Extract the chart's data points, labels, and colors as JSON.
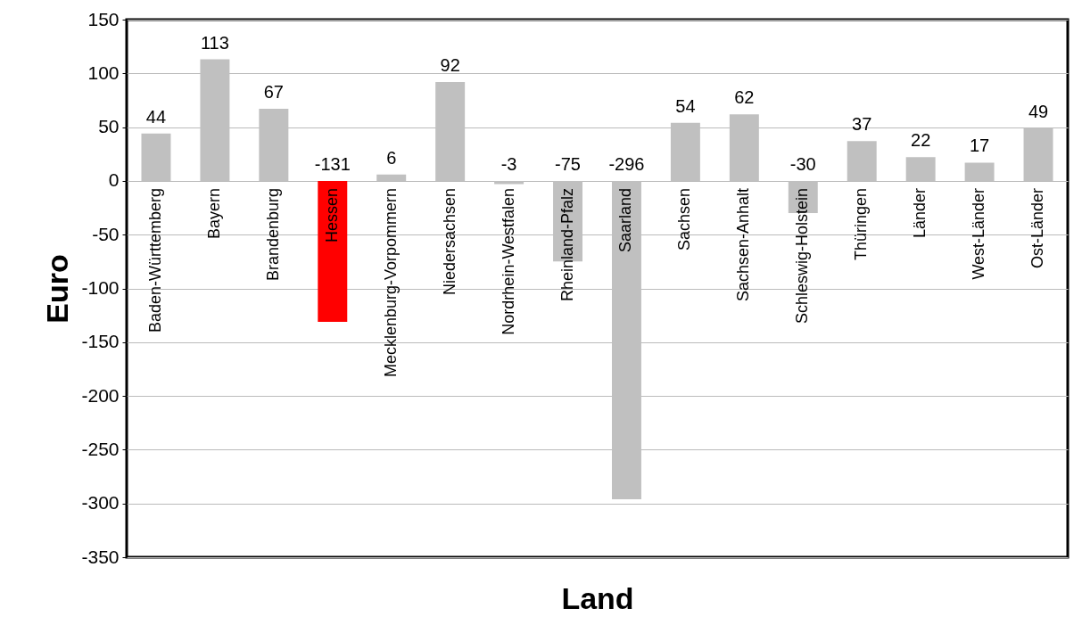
{
  "chart_data": {
    "type": "bar",
    "xlabel": "Land",
    "ylabel": "Euro",
    "categories": [
      "Baden-Württemberg",
      "Bayern",
      "Brandenburg",
      "Hessen",
      "Mecklenburg-Vorpommern",
      "Niedersachsen",
      "Nordrhein-Westfalen",
      "Rheinland-Pfalz",
      "Saarland",
      "Sachsen",
      "Sachsen-Anhalt",
      "Schleswig-Holstein",
      "Thüringen",
      "Länder",
      "West-Länder",
      "Ost-Länder"
    ],
    "values": [
      44,
      113,
      67,
      -131,
      6,
      92,
      -3,
      -75,
      -296,
      54,
      62,
      -30,
      37,
      22,
      17,
      49
    ],
    "colors": [
      "#c0c0c0",
      "#c0c0c0",
      "#c0c0c0",
      "#ff0000",
      "#c0c0c0",
      "#c0c0c0",
      "#c0c0c0",
      "#c0c0c0",
      "#c0c0c0",
      "#c0c0c0",
      "#c0c0c0",
      "#c0c0c0",
      "#c0c0c0",
      "#c0c0c0",
      "#c0c0c0",
      "#c0c0c0"
    ],
    "ylim": [
      -350,
      150
    ],
    "yticks": [
      -350,
      -300,
      -250,
      -200,
      -150,
      -100,
      -50,
      0,
      50,
      100,
      150
    ],
    "grid": "y",
    "data_labels": true
  }
}
